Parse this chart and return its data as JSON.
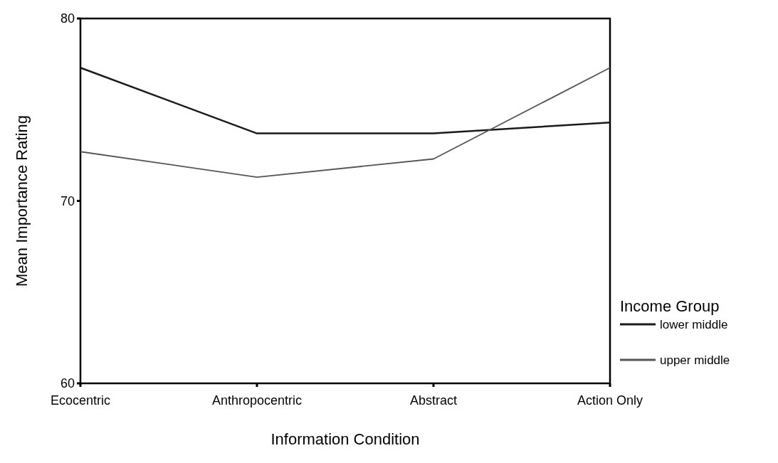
{
  "chart_data": {
    "type": "line",
    "xlabel": "Information Condition",
    "ylabel": "Mean Importance Rating",
    "legend_title": "Income Group",
    "categories": [
      "Ecocentric",
      "Anthropocentric",
      "Abstract",
      "Action Only"
    ],
    "series": [
      {
        "name": "lower middle",
        "color": "#1a1a1a",
        "values": [
          77.3,
          73.7,
          73.7,
          74.3
        ]
      },
      {
        "name": "upper middle",
        "color": "#555555",
        "values": [
          72.7,
          71.3,
          72.3,
          77.3
        ]
      }
    ],
    "ylim": [
      60,
      80
    ],
    "yticks": [
      60,
      70,
      80
    ],
    "grid": false,
    "legend": "right",
    "marker": "none",
    "line_style": "solid"
  }
}
